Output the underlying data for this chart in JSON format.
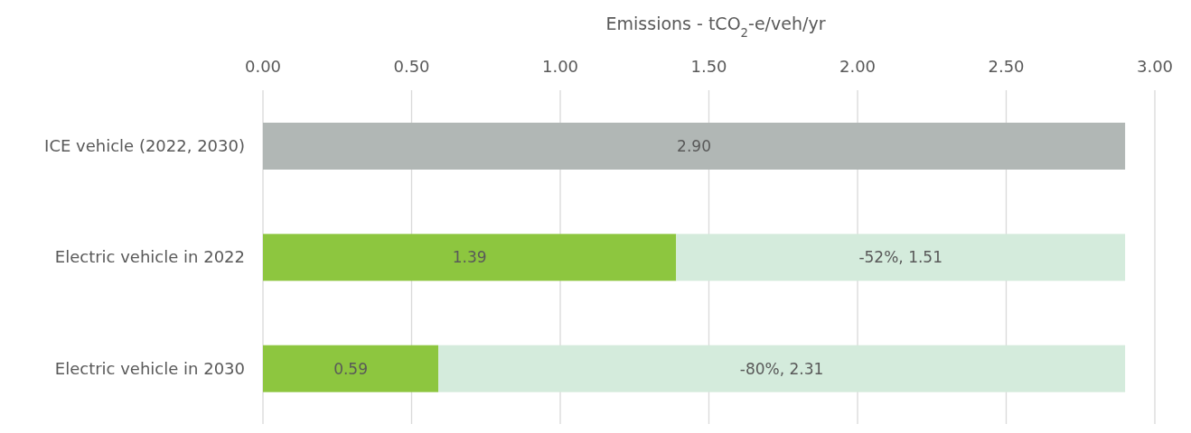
{
  "chart_data": {
    "type": "bar",
    "orientation": "horizontal",
    "stacked": true,
    "xlabel": "Emissions - tCO$_{2}$-e/veh/yr",
    "categories": [
      "ICE vehicle (2022, 2030)",
      "Electric vehicle in 2022",
      "Electric vehicle in 2030"
    ],
    "series": [
      {
        "colors": [
          "#b1b7b5",
          "#8dc63f",
          "#8dc63f"
        ],
        "values": [
          2.9,
          1.39,
          0.59
        ],
        "value_labels": [
          "2.90",
          "1.39",
          "0.59"
        ]
      },
      {
        "color": "#d4ebdc",
        "values": [
          null,
          1.51,
          2.31
        ],
        "value_labels": [
          null,
          "-52%, 1.51",
          "-80%, 2.31"
        ]
      }
    ],
    "xlim": [
      0,
      3
    ],
    "xticks": [
      {
        "value": 0,
        "label": "0.00"
      },
      {
        "value": 0.5,
        "label": "0.50"
      },
      {
        "value": 1,
        "label": "1.00"
      },
      {
        "value": 1.5,
        "label": "1.50"
      },
      {
        "value": 2,
        "label": "2.00"
      },
      {
        "value": 2.5,
        "label": "2.50"
      },
      {
        "value": 3,
        "label": "3.00"
      }
    ],
    "grid": "x"
  }
}
